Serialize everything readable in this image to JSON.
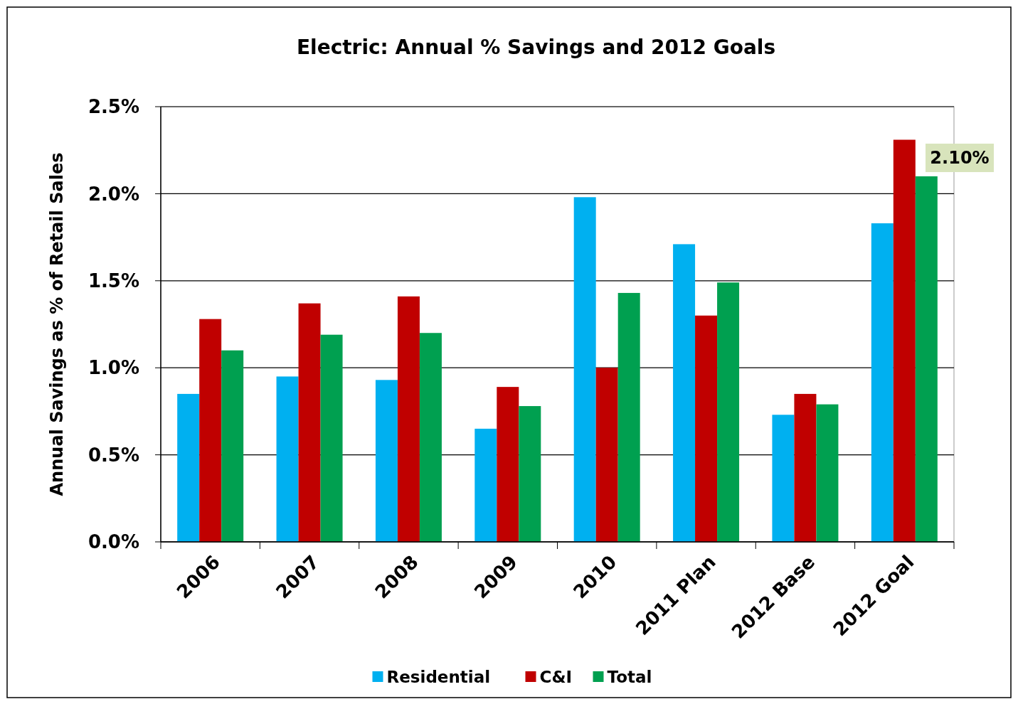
{
  "chart_data": {
    "type": "bar",
    "title": "Electric: Annual % Savings and 2012 Goals",
    "ylabel": "Annual Savings as % of Retail Sales",
    "categories": [
      "2006",
      "2007",
      "2008",
      "2009",
      "2010",
      "2011 Plan",
      "2012 Base",
      "2012 Goal"
    ],
    "series": [
      {
        "name": "Residential",
        "color": "#00b0f0",
        "values": [
          0.85,
          0.95,
          0.93,
          0.65,
          1.98,
          1.71,
          0.73,
          1.83
        ]
      },
      {
        "name": "C&I",
        "color": "#c00000",
        "values": [
          1.28,
          1.37,
          1.41,
          0.89,
          1.0,
          1.3,
          0.85,
          2.31
        ]
      },
      {
        "name": "Total",
        "color": "#00a050",
        "values": [
          1.1,
          1.19,
          1.2,
          0.78,
          1.43,
          1.49,
          0.79,
          2.1
        ]
      }
    ],
    "ylim": [
      0,
      2.5
    ],
    "yticks": [
      {
        "value": 0,
        "label": "0.0%"
      },
      {
        "value": 0.5,
        "label": "0.5%"
      },
      {
        "value": 1,
        "label": "1.0%"
      },
      {
        "value": 1.5,
        "label": "1.5%"
      },
      {
        "value": 2,
        "label": "2.0%"
      },
      {
        "value": 2.5,
        "label": "2.5%"
      }
    ],
    "grid": "y",
    "legend": "bottom",
    "annotations": [
      "2.10%"
    ]
  }
}
